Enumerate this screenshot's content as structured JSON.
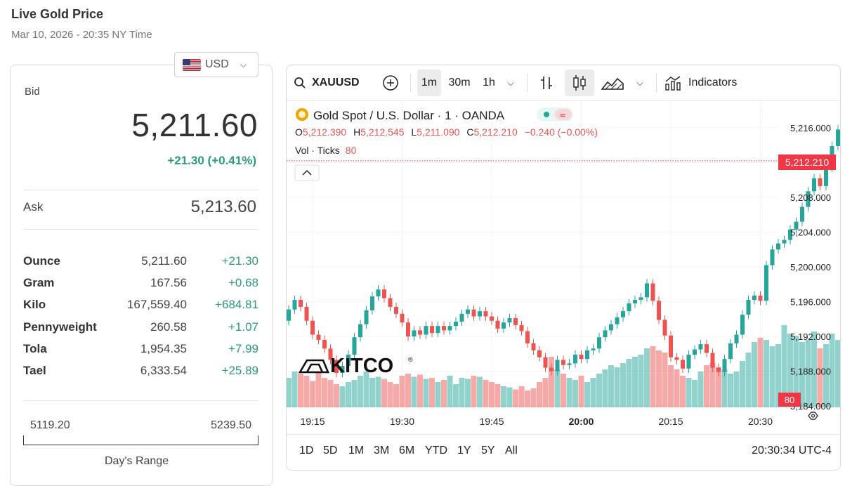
{
  "header": {
    "title": "Live Gold Price",
    "subtitle": "Mar 10, 2026 - 20:35 NY Time"
  },
  "currency": {
    "selected": "USD"
  },
  "quote": {
    "bid_label": "Bid",
    "bid": "5,211.60",
    "change": "+21.30 (+0.41%)",
    "ask_label": "Ask",
    "ask": "5,213.60"
  },
  "units": [
    {
      "name": "Ounce",
      "value": "5,211.60",
      "change": "+21.30"
    },
    {
      "name": "Gram",
      "value": "167.56",
      "change": "+0.68"
    },
    {
      "name": "Kilo",
      "value": "167,559.40",
      "change": "+684.81"
    },
    {
      "name": "Pennyweight",
      "value": "260.58",
      "change": "+1.07"
    },
    {
      "name": "Tola",
      "value": "1,954.35",
      "change": "+7.99"
    },
    {
      "name": "Tael",
      "value": "6,333.54",
      "change": "+25.89"
    }
  ],
  "day_range": {
    "low": "5119.20",
    "high": "5239.50",
    "label": "Day's Range"
  },
  "chart_toolbar": {
    "symbol": "XAUUSD",
    "intervals": [
      "1m",
      "30m",
      "1h"
    ],
    "selected_interval": "1m",
    "indicators_label": "Indicators"
  },
  "chart_legend": {
    "title": "Gold Spot / U.S. Dollar · 1 · OANDA",
    "o_label": "O",
    "o": "5,212.390",
    "h_label": "H",
    "h": "5,212.545",
    "l_label": "L",
    "l": "5,211.090",
    "c_label": "C",
    "c": "5,212.210",
    "chg": "−0.240 (−0.00%)",
    "vol_label": "Vol · Ticks",
    "vol": "80"
  },
  "watermark": "KITCO",
  "price_label": "5,212.210",
  "vol_badge": "80",
  "range_buttons": [
    "1D",
    "5D",
    "1M",
    "3M",
    "6M",
    "YTD",
    "1Y",
    "5Y",
    "All"
  ],
  "clock": "20:30:34 UTC-4",
  "colors": {
    "up": "#26a69a",
    "down": "#ef5350",
    "accent_green": "#2a9d75",
    "price_tag": "#f23645"
  },
  "chart_data": {
    "type": "candlestick",
    "y_axis_ticks": [
      "5,216.000",
      "5,212.000",
      "5,208.000",
      "5,204.000",
      "5,200.000",
      "5,196.000",
      "5,192.000",
      "5,188.000",
      "5,184.000"
    ],
    "x_axis_ticks": [
      "19:15",
      "19:30",
      "19:45",
      "20:00",
      "20:15",
      "20:30"
    ],
    "ylim": [
      5184,
      5216
    ],
    "x_start": "19:10",
    "candles_close": [
      5193.8,
      5195.1,
      5196.2,
      5195.4,
      5193.8,
      5192.2,
      5191.6,
      5190.6,
      5189.3,
      5187.8,
      5188.6,
      5189.9,
      5191.9,
      5193.4,
      5195.0,
      5196.6,
      5197.4,
      5196.4,
      5195.4,
      5194.6,
      5193.6,
      5192.0,
      5192.7,
      5192.2,
      5193.2,
      5192.4,
      5193.2,
      5192.7,
      5193.2,
      5193.7,
      5194.6,
      5195.1,
      5194.3,
      5194.9,
      5194.3,
      5193.8,
      5192.9,
      5193.6,
      5194.1,
      5193.3,
      5192.6,
      5191.2,
      5190.4,
      5189.6,
      5188.4,
      5188.0,
      5189.3,
      5188.7,
      5188.9,
      5189.9,
      5189.4,
      5190.4,
      5190.6,
      5191.9,
      5192.7,
      5193.4,
      5194.2,
      5194.9,
      5195.8,
      5196.2,
      5196.5,
      5198.1,
      5196.1,
      5193.9,
      5192.1,
      5189.6,
      5189.3,
      5188.3,
      5189.9,
      5190.5,
      5191.1,
      5190.1,
      5188.4,
      5187.9,
      5189.4,
      5191.2,
      5192.2,
      5194.5,
      5196.2,
      5196.7,
      5196.1,
      5200.2,
      5202.0,
      5202.7,
      5203.1,
      5204.3,
      5205.2,
      5206.9,
      5208.7,
      5210.2,
      5209.3,
      5211.4,
      5213.9,
      5215.8,
      5215.0,
      5212.4,
      5212.2
    ],
    "candles_open": [
      5194.4,
      5193.8,
      5195.1,
      5196.2,
      5195.4,
      5193.8,
      5192.2,
      5191.6,
      5190.6,
      5189.3,
      5187.8,
      5188.6,
      5189.9,
      5191.9,
      5193.4,
      5195.0,
      5196.6,
      5197.4,
      5196.4,
      5195.4,
      5194.6,
      5193.6,
      5192.0,
      5192.7,
      5192.2,
      5193.2,
      5192.4,
      5193.2,
      5192.7,
      5193.2,
      5193.7,
      5194.6,
      5195.1,
      5194.3,
      5194.9,
      5194.3,
      5193.8,
      5192.9,
      5193.6,
      5194.1,
      5193.3,
      5192.6,
      5191.2,
      5190.4,
      5189.6,
      5188.4,
      5188.0,
      5189.3,
      5188.7,
      5188.9,
      5189.9,
      5189.4,
      5190.4,
      5190.6,
      5191.9,
      5192.7,
      5193.4,
      5194.2,
      5194.9,
      5195.8,
      5196.2,
      5196.5,
      5198.1,
      5196.1,
      5193.9,
      5192.1,
      5189.6,
      5189.3,
      5188.3,
      5189.9,
      5190.5,
      5191.1,
      5190.1,
      5188.4,
      5187.9,
      5189.4,
      5191.2,
      5192.2,
      5194.5,
      5196.2,
      5196.7,
      5196.1,
      5200.2,
      5202.0,
      5202.7,
      5203.1,
      5204.3,
      5205.2,
      5206.9,
      5208.7,
      5210.2,
      5209.3,
      5211.4,
      5213.9,
      5215.8,
      5215.0,
      5212.4
    ],
    "volume": [
      30,
      28,
      34,
      32,
      30,
      25,
      33,
      28,
      26,
      22,
      20,
      24,
      26,
      30,
      34,
      28,
      29,
      27,
      24,
      22,
      30,
      32,
      29,
      31,
      27,
      28,
      24,
      26,
      30,
      22,
      28,
      27,
      30,
      29,
      26,
      24,
      22,
      20,
      19,
      17,
      20,
      16,
      18,
      24,
      28,
      48,
      36,
      32,
      28,
      26,
      30,
      24,
      28,
      32,
      36,
      40,
      38,
      42,
      46,
      48,
      50,
      56,
      58,
      54,
      52,
      40,
      36,
      30,
      28,
      26,
      34,
      40,
      42,
      38,
      36,
      32,
      34,
      44,
      52,
      62,
      66,
      64,
      58,
      60,
      78,
      70,
      68,
      62,
      64,
      72,
      56,
      60,
      70,
      64,
      60,
      36,
      12
    ],
    "last_price": 5212.21
  }
}
